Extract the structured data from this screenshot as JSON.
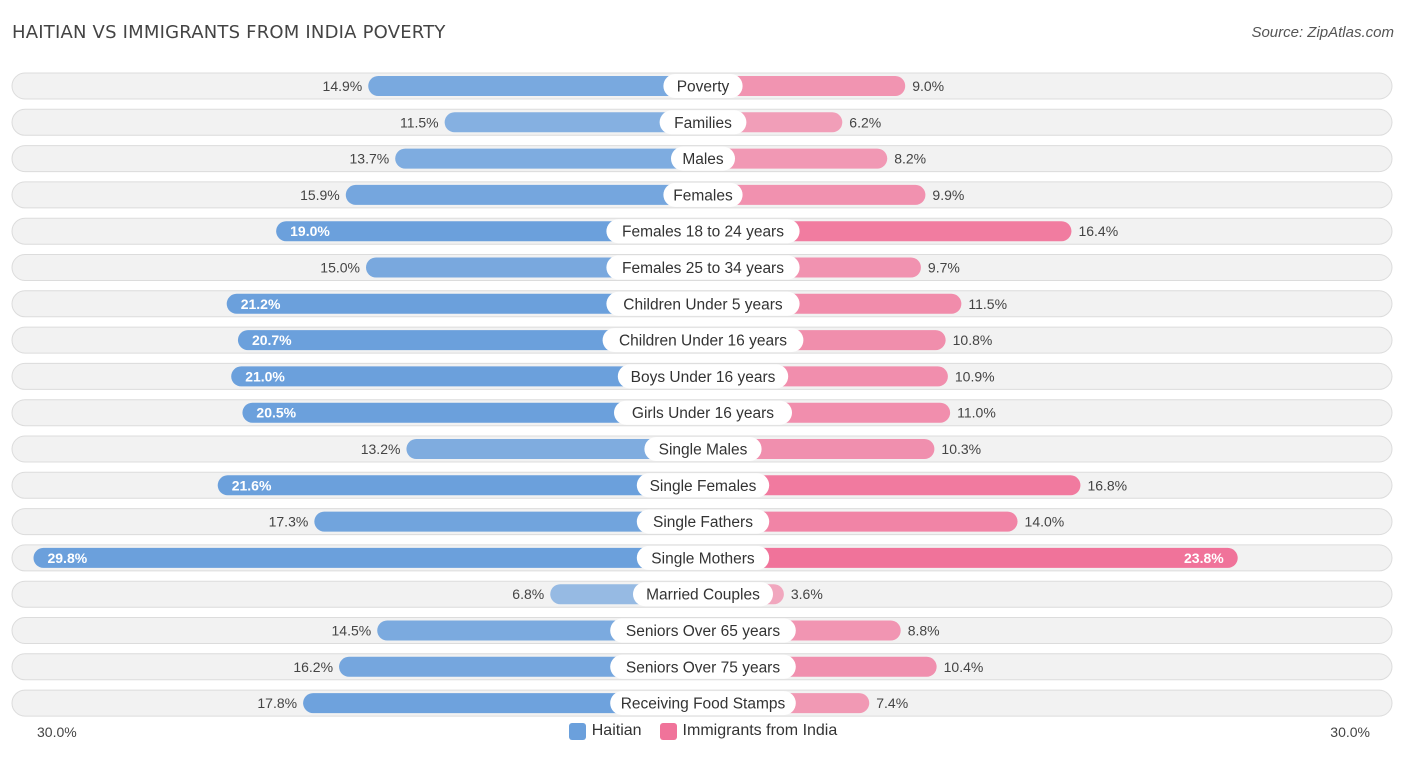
{
  "chart_data": {
    "type": "bar",
    "orientation": "horizontal-diverging",
    "title": "HAITIAN VS IMMIGRANTS FROM INDIA POVERTY",
    "source": "Source: ZipAtlas.com",
    "axis": {
      "left_label": "30.0%",
      "right_label": "30.0%",
      "max": 30.0
    },
    "colors": {
      "haitian": "#6ba0dc",
      "india": "#f0739a",
      "row_bg": "#f2f2f2",
      "row_border": "#dcdcdc"
    },
    "series": [
      {
        "name": "Haitian",
        "key": "haitian"
      },
      {
        "name": "Immigrants from India",
        "key": "india"
      }
    ],
    "categories": [
      "Poverty",
      "Families",
      "Males",
      "Females",
      "Females 18 to 24 years",
      "Females 25 to 34 years",
      "Children Under 5 years",
      "Children Under 16 years",
      "Boys Under 16 years",
      "Girls Under 16 years",
      "Single Males",
      "Single Females",
      "Single Fathers",
      "Single Mothers",
      "Married Couples",
      "Seniors Over 65 years",
      "Seniors Over 75 years",
      "Receiving Food Stamps"
    ],
    "haitian_values": [
      14.9,
      11.5,
      13.7,
      15.9,
      19.0,
      15.0,
      21.2,
      20.7,
      21.0,
      20.5,
      13.2,
      21.6,
      17.3,
      29.8,
      6.8,
      14.5,
      16.2,
      17.8
    ],
    "haitian_labels": [
      "14.9%",
      "11.5%",
      "13.7%",
      "15.9%",
      "19.0%",
      "15.0%",
      "21.2%",
      "20.7%",
      "21.0%",
      "20.5%",
      "13.2%",
      "21.6%",
      "17.3%",
      "29.8%",
      "6.8%",
      "14.5%",
      "16.2%",
      "17.8%"
    ],
    "india_values": [
      9.0,
      6.2,
      8.2,
      9.9,
      16.4,
      9.7,
      11.5,
      10.8,
      10.9,
      11.0,
      10.3,
      16.8,
      14.0,
      23.8,
      3.6,
      8.8,
      10.4,
      7.4
    ],
    "india_labels": [
      "9.0%",
      "6.2%",
      "8.2%",
      "9.9%",
      "16.4%",
      "9.7%",
      "11.5%",
      "10.8%",
      "10.9%",
      "11.0%",
      "10.3%",
      "16.8%",
      "14.0%",
      "23.8%",
      "3.6%",
      "8.8%",
      "10.4%",
      "7.4%"
    ]
  }
}
